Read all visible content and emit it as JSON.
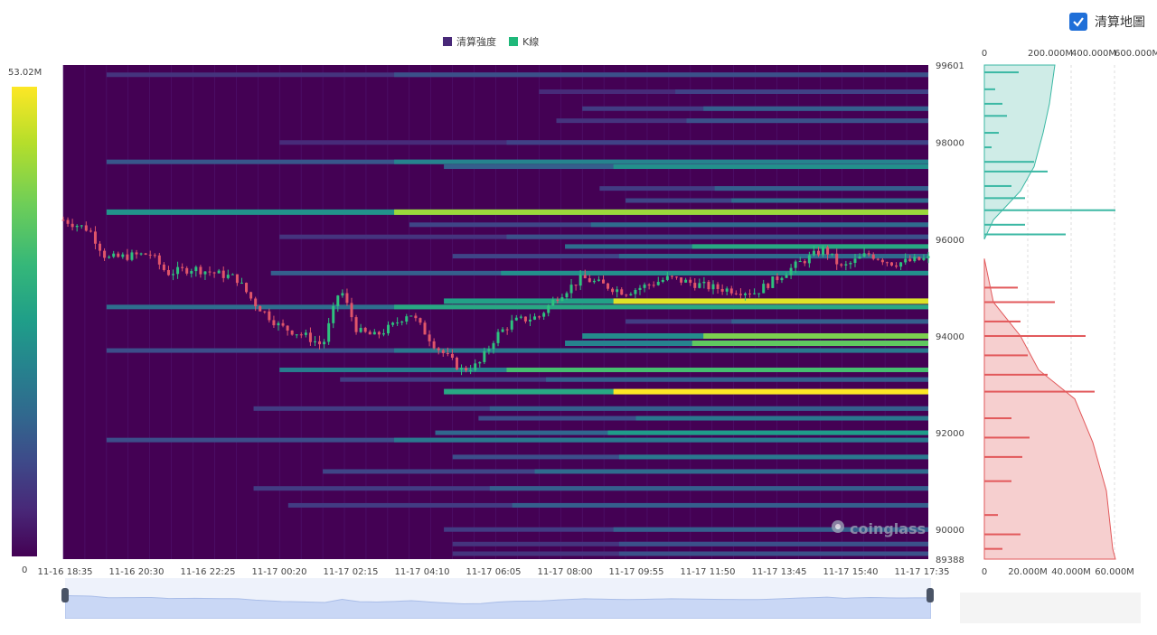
{
  "legend": {
    "heat": "清算強度",
    "kline": "K線",
    "heat_color": "#482878",
    "kline_color": "#1fb87a"
  },
  "toggle": {
    "label": "清算地圖",
    "checked": true
  },
  "colorbar": {
    "max": "53.02M",
    "min": "0"
  },
  "watermark": "coinglass",
  "chart_data": [
    {
      "type": "heatmap",
      "title": "",
      "series_names": [
        "清算強度",
        "K線"
      ],
      "x_ticks": [
        "11-16 18:35",
        "11-16 20:30",
        "11-16 22:25",
        "11-17 00:20",
        "11-17 02:15",
        "11-17 04:10",
        "11-17 06:05",
        "11-17 08:00",
        "11-17 09:55",
        "11-17 11:50",
        "11-17 13:45",
        "11-17 15:40",
        "11-17 17:35"
      ],
      "y_ticks": [
        "99601",
        "98000",
        "96000",
        "94000",
        "92000",
        "90000",
        "89388"
      ],
      "ylim": [
        89388,
        99601
      ],
      "colorscale": "viridis",
      "value_range": [
        0,
        53.02
      ],
      "bands": [
        {
          "price": 99400,
          "start": 0.05,
          "intensity": 0.25
        },
        {
          "price": 99050,
          "start": 0.55,
          "intensity": 0.2
        },
        {
          "price": 98700,
          "start": 0.6,
          "intensity": 0.3
        },
        {
          "price": 98450,
          "start": 0.57,
          "intensity": 0.25
        },
        {
          "price": 98000,
          "start": 0.25,
          "intensity": 0.2
        },
        {
          "price": 97600,
          "start": 0.05,
          "intensity": 0.45
        },
        {
          "price": 97500,
          "start": 0.44,
          "intensity": 0.5
        },
        {
          "price": 97050,
          "start": 0.62,
          "intensity": 0.3
        },
        {
          "price": 96800,
          "start": 0.65,
          "intensity": 0.35
        },
        {
          "price": 96560,
          "start": 0.05,
          "intensity": 0.85
        },
        {
          "price": 96300,
          "start": 0.4,
          "intensity": 0.35
        },
        {
          "price": 96050,
          "start": 0.25,
          "intensity": 0.25
        },
        {
          "price": 95850,
          "start": 0.58,
          "intensity": 0.6
        },
        {
          "price": 95650,
          "start": 0.45,
          "intensity": 0.35
        },
        {
          "price": 95300,
          "start": 0.24,
          "intensity": 0.5
        },
        {
          "price": 94720,
          "start": 0.44,
          "intensity": 0.95
        },
        {
          "price": 94600,
          "start": 0.05,
          "intensity": 0.6
        },
        {
          "price": 94300,
          "start": 0.65,
          "intensity": 0.3
        },
        {
          "price": 94000,
          "start": 0.6,
          "intensity": 0.8
        },
        {
          "price": 93850,
          "start": 0.58,
          "intensity": 0.75
        },
        {
          "price": 93700,
          "start": 0.05,
          "intensity": 0.4
        },
        {
          "price": 93300,
          "start": 0.25,
          "intensity": 0.7
        },
        {
          "price": 93100,
          "start": 0.32,
          "intensity": 0.3
        },
        {
          "price": 92850,
          "start": 0.44,
          "intensity": 1.0
        },
        {
          "price": 92500,
          "start": 0.22,
          "intensity": 0.3
        },
        {
          "price": 92300,
          "start": 0.48,
          "intensity": 0.4
        },
        {
          "price": 92000,
          "start": 0.43,
          "intensity": 0.55
        },
        {
          "price": 91850,
          "start": 0.05,
          "intensity": 0.4
        },
        {
          "price": 91500,
          "start": 0.45,
          "intensity": 0.4
        },
        {
          "price": 91200,
          "start": 0.3,
          "intensity": 0.35
        },
        {
          "price": 90850,
          "start": 0.22,
          "intensity": 0.3
        },
        {
          "price": 90500,
          "start": 0.26,
          "intensity": 0.3
        },
        {
          "price": 90000,
          "start": 0.44,
          "intensity": 0.3
        },
        {
          "price": 89700,
          "start": 0.45,
          "intensity": 0.25
        },
        {
          "price": 89500,
          "start": 0.45,
          "intensity": 0.25
        }
      ],
      "price_path": [
        [
          0.0,
          96400
        ],
        [
          0.03,
          96200
        ],
        [
          0.05,
          95600
        ],
        [
          0.1,
          95700
        ],
        [
          0.12,
          95300
        ],
        [
          0.15,
          95400
        ],
        [
          0.2,
          95200
        ],
        [
          0.22,
          94700
        ],
        [
          0.25,
          94200
        ],
        [
          0.28,
          94000
        ],
        [
          0.3,
          93800
        ],
        [
          0.32,
          95000
        ],
        [
          0.34,
          94100
        ],
        [
          0.36,
          94000
        ],
        [
          0.38,
          94200
        ],
        [
          0.4,
          94500
        ],
        [
          0.43,
          93800
        ],
        [
          0.46,
          93300
        ],
        [
          0.48,
          93400
        ],
        [
          0.5,
          94000
        ],
        [
          0.52,
          94300
        ],
        [
          0.55,
          94400
        ],
        [
          0.57,
          94800
        ],
        [
          0.6,
          95200
        ],
        [
          0.65,
          94900
        ],
        [
          0.7,
          95200
        ],
        [
          0.75,
          95000
        ],
        [
          0.8,
          94900
        ],
        [
          0.85,
          95500
        ],
        [
          0.88,
          95800
        ],
        [
          0.9,
          95400
        ],
        [
          0.93,
          95700
        ],
        [
          0.96,
          95500
        ],
        [
          1.0,
          95600
        ]
      ]
    },
    {
      "type": "bar",
      "title": "",
      "orientation": "horizontal",
      "x_ticks_top": [
        "0",
        "200.000M",
        "400.000M",
        "600.000M"
      ],
      "x_ticks_bottom": [
        "0",
        "20.000M",
        "40.000M",
        "60.000M"
      ],
      "short_color": "#3bb8a4",
      "long_color": "#e2595b",
      "short_values": [
        {
          "price": 99450,
          "value": 38
        },
        {
          "price": 99100,
          "value": 12
        },
        {
          "price": 98800,
          "value": 20
        },
        {
          "price": 98550,
          "value": 25
        },
        {
          "price": 98200,
          "value": 16
        },
        {
          "price": 97900,
          "value": 8
        },
        {
          "price": 97600,
          "value": 55
        },
        {
          "price": 97400,
          "value": 70
        },
        {
          "price": 97100,
          "value": 30
        },
        {
          "price": 96850,
          "value": 45
        },
        {
          "price": 96600,
          "value": 145
        },
        {
          "price": 96300,
          "value": 45
        },
        {
          "price": 96100,
          "value": 90
        }
      ],
      "long_values": [
        {
          "price": 95000,
          "value": 37
        },
        {
          "price": 94700,
          "value": 78
        },
        {
          "price": 94300,
          "value": 40
        },
        {
          "price": 94000,
          "value": 112
        },
        {
          "price": 93600,
          "value": 48
        },
        {
          "price": 93200,
          "value": 70
        },
        {
          "price": 92850,
          "value": 122
        },
        {
          "price": 92300,
          "value": 30
        },
        {
          "price": 91900,
          "value": 50
        },
        {
          "price": 91500,
          "value": 42
        },
        {
          "price": 91000,
          "value": 30
        },
        {
          "price": 90300,
          "value": 15
        },
        {
          "price": 89900,
          "value": 40
        },
        {
          "price": 89600,
          "value": 20
        }
      ]
    }
  ]
}
